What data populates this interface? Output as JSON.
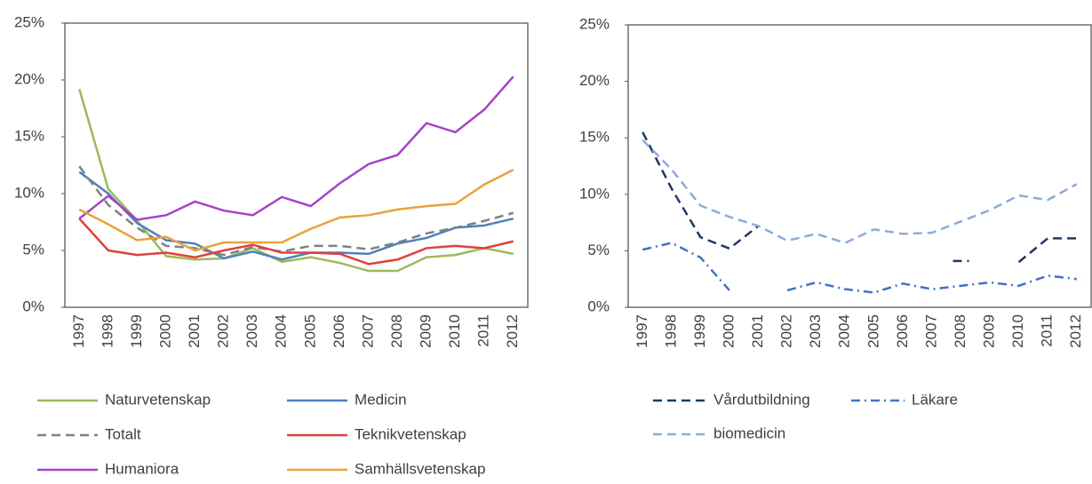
{
  "chart_data": [
    {
      "type": "line",
      "categories": [
        "1997",
        "1998",
        "1999",
        "2000",
        "2001",
        "2002",
        "2003",
        "2004",
        "2005",
        "2006",
        "2007",
        "2008",
        "2009",
        "2010",
        "2011",
        "2012"
      ],
      "ylim": [
        0,
        25
      ],
      "yticks": [
        {
          "value": 0,
          "label": "0%"
        },
        {
          "value": 5,
          "label": "5%"
        },
        {
          "value": 10,
          "label": "10%"
        },
        {
          "value": 15,
          "label": "15%"
        },
        {
          "value": 20,
          "label": "20%"
        },
        {
          "value": 25,
          "label": "25%"
        }
      ],
      "legend": "bottom",
      "series": [
        {
          "name": "Naturvetenskap",
          "color": "#9bbb59",
          "style": "solid",
          "values": [
            19.2,
            10.4,
            7.6,
            4.5,
            4.2,
            4.3,
            5.2,
            4.0,
            4.4,
            3.9,
            3.2,
            3.2,
            4.4,
            4.6,
            5.2,
            4.7
          ]
        },
        {
          "name": "Medicin",
          "color": "#4f81bd",
          "style": "solid",
          "values": [
            11.9,
            10.0,
            7.4,
            5.9,
            5.6,
            4.3,
            4.9,
            4.2,
            4.8,
            4.8,
            4.7,
            5.6,
            6.1,
            7.0,
            7.2,
            7.8
          ]
        },
        {
          "name": "Totalt",
          "color": "#808080",
          "style": "dashed",
          "values": [
            12.4,
            9.0,
            7.0,
            5.4,
            5.2,
            4.6,
            5.3,
            4.9,
            5.4,
            5.4,
            5.1,
            5.7,
            6.5,
            7.0,
            7.6,
            8.3
          ]
        },
        {
          "name": "Teknikvetenskap",
          "color": "#e0403c",
          "style": "solid",
          "values": [
            7.8,
            5.0,
            4.6,
            4.8,
            4.4,
            5.0,
            5.5,
            4.8,
            4.8,
            4.7,
            3.8,
            4.2,
            5.2,
            5.4,
            5.2,
            5.8
          ]
        },
        {
          "name": "Humaniora",
          "color": "#a742c9",
          "style": "solid",
          "values": [
            7.8,
            9.8,
            7.7,
            8.1,
            9.3,
            8.5,
            8.1,
            9.7,
            8.9,
            10.9,
            12.6,
            13.4,
            16.2,
            15.4,
            17.4,
            20.3
          ]
        },
        {
          "name": "Samhällsvetenskap",
          "color": "#e8a33c",
          "style": "solid",
          "values": [
            8.6,
            7.3,
            5.9,
            6.2,
            5.0,
            5.7,
            5.7,
            5.7,
            6.9,
            7.9,
            8.1,
            8.6,
            8.9,
            9.1,
            10.8,
            12.1
          ]
        }
      ]
    },
    {
      "type": "line",
      "categories": [
        "1997",
        "1998",
        "1999",
        "2000",
        "2001",
        "2002",
        "2003",
        "2004",
        "2005",
        "2006",
        "2007",
        "2008",
        "2009",
        "2010",
        "2011",
        "2012"
      ],
      "ylim": [
        0,
        25
      ],
      "yticks": [
        {
          "value": 0,
          "label": "0%"
        },
        {
          "value": 5,
          "label": "5%"
        },
        {
          "value": 10,
          "label": "10%"
        },
        {
          "value": 15,
          "label": "15%"
        },
        {
          "value": 20,
          "label": "20%"
        },
        {
          "value": 25,
          "label": "25%"
        }
      ],
      "legend": "bottom",
      "series": [
        {
          "name": "Vårdutbildning",
          "color": "#1f3864",
          "style": "dashed",
          "values": [
            15.5,
            10.5,
            6.2,
            5.2,
            7.2,
            null,
            null,
            null,
            null,
            null,
            null,
            4.1,
            null,
            4.0,
            6.1,
            6.1
          ]
        },
        {
          "name": "Läkare",
          "color": "#4472c4",
          "style": "dashdot",
          "values": [
            5.1,
            5.7,
            4.4,
            1.5,
            null,
            1.5,
            2.2,
            1.6,
            1.3,
            2.1,
            1.6,
            1.9,
            2.2,
            1.9,
            2.8,
            2.5
          ]
        },
        {
          "name": "biomedicin",
          "color": "#8eaadb",
          "style": "dashed",
          "values": [
            14.8,
            12.2,
            9.0,
            8.0,
            7.2,
            5.9,
            6.5,
            5.7,
            6.9,
            6.5,
            6.6,
            7.6,
            8.6,
            9.9,
            9.5,
            10.9
          ]
        }
      ]
    }
  ]
}
